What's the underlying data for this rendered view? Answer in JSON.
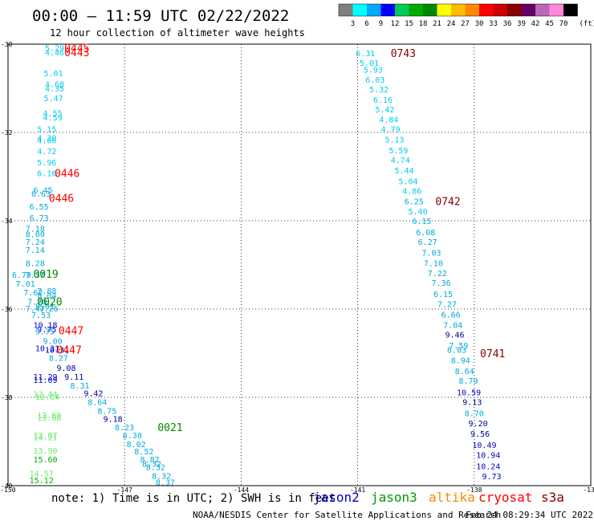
{
  "header": {
    "title": "00:00 – 11:59 UTC 02/22/2022",
    "subtitle": "12 hour collection of altimeter wave heights"
  },
  "color_scale": {
    "labels": [
      "3",
      "6",
      "9",
      "12",
      "15",
      "18",
      "21",
      "24",
      "27",
      "30",
      "33",
      "36",
      "39",
      "42",
      "45",
      "70"
    ],
    "unit": "(ft)",
    "colors": [
      "#808080",
      "#00ffff",
      "#00aaff",
      "#0000ff",
      "#00cc55",
      "#00aa00",
      "#008800",
      "#ffff00",
      "#ffbb00",
      "#ff8800",
      "#ff0000",
      "#cc0000",
      "#880000",
      "#660066",
      "#bb66bb",
      "#ff88dd",
      "#000000"
    ]
  },
  "axes": {
    "lon_ticks": [
      "-150",
      "-147",
      "-144",
      "-141",
      "-138",
      "-135"
    ],
    "lat_ticks": [
      "-30",
      "-32",
      "-34",
      "-36",
      "-38",
      "-40"
    ],
    "lon_range": [
      -150,
      -135
    ],
    "lat_range": [
      -40,
      -30
    ]
  },
  "wave_readings": [
    {
      "lon": -149.05,
      "lat": -30.08,
      "v": "5.29",
      "c": "#00ccee"
    },
    {
      "lon": -149.05,
      "lat": -30.18,
      "v": "4.46",
      "c": "#00ccee"
    },
    {
      "lon": -149.08,
      "lat": -30.65,
      "v": "5.01",
      "c": "#00ccee"
    },
    {
      "lon": -149.05,
      "lat": -30.9,
      "v": "4.68",
      "c": "#00ccee"
    },
    {
      "lon": -149.05,
      "lat": -31.0,
      "v": "4.35",
      "c": "#00ccee"
    },
    {
      "lon": -149.08,
      "lat": -31.22,
      "v": "5.47",
      "c": "#00ccee"
    },
    {
      "lon": -149.1,
      "lat": -31.55,
      "v": "4.55",
      "c": "#00ccee"
    },
    {
      "lon": -149.1,
      "lat": -31.65,
      "v": "4.59",
      "c": "#00ccee"
    },
    {
      "lon": -149.25,
      "lat": -31.92,
      "v": "5.15",
      "c": "#00ccee"
    },
    {
      "lon": -149.25,
      "lat": -32.12,
      "v": "4.30",
      "c": "#00ccee"
    },
    {
      "lon": -149.25,
      "lat": -32.17,
      "v": "4.66",
      "c": "#00ccee"
    },
    {
      "lon": -149.25,
      "lat": -32.42,
      "v": "4.72",
      "c": "#00ccee"
    },
    {
      "lon": -149.25,
      "lat": -32.67,
      "v": "5.96",
      "c": "#00ccee"
    },
    {
      "lon": -149.25,
      "lat": -32.92,
      "v": "6.16",
      "c": "#00ccee"
    },
    {
      "lon": -149.35,
      "lat": -33.3,
      "v": "6.45",
      "c": "#00aadd"
    },
    {
      "lon": -149.4,
      "lat": -33.38,
      "v": "6.63",
      "c": "#00aadd"
    },
    {
      "lon": -149.45,
      "lat": -33.67,
      "v": "6.55",
      "c": "#00aadd"
    },
    {
      "lon": -149.45,
      "lat": -33.93,
      "v": "6.73",
      "c": "#00aadd"
    },
    {
      "lon": -149.55,
      "lat": -34.17,
      "v": "7.18",
      "c": "#00aadd"
    },
    {
      "lon": -149.55,
      "lat": -34.3,
      "v": "8.00",
      "c": "#00aadd"
    },
    {
      "lon": -149.55,
      "lat": -34.47,
      "v": "7.24",
      "c": "#00aadd"
    },
    {
      "lon": -149.55,
      "lat": -34.65,
      "v": "7.14",
      "c": "#00aadd"
    },
    {
      "lon": -149.55,
      "lat": -34.95,
      "v": "8.28",
      "c": "#00aadd"
    },
    {
      "lon": -149.9,
      "lat": -35.22,
      "v": "6.79",
      "c": "#00aadd"
    },
    {
      "lon": -149.55,
      "lat": -35.22,
      "v": "7.37",
      "c": "#00aadd"
    },
    {
      "lon": -149.8,
      "lat": -35.42,
      "v": "7.01",
      "c": "#00aadd"
    },
    {
      "lon": -149.6,
      "lat": -35.62,
      "v": "7.62",
      "c": "#00aadd"
    },
    {
      "lon": -149.25,
      "lat": -35.58,
      "v": "7.88",
      "c": "#00aadd"
    },
    {
      "lon": -149.25,
      "lat": -35.68,
      "v": "8.04",
      "c": "#00aadd"
    },
    {
      "lon": -149.5,
      "lat": -35.83,
      "v": "7.70",
      "c": "#00aadd"
    },
    {
      "lon": -149.55,
      "lat": -35.98,
      "v": "7.47",
      "c": "#00aadd"
    },
    {
      "lon": -149.3,
      "lat": -35.93,
      "v": "8.01",
      "c": "#00aadd"
    },
    {
      "lon": -149.2,
      "lat": -35.98,
      "v": "7.26",
      "c": "#00aadd"
    },
    {
      "lon": -149.4,
      "lat": -36.13,
      "v": "7.53",
      "c": "#00aadd"
    },
    {
      "lon": -149.35,
      "lat": -36.35,
      "v": "10.18",
      "c": "#0000cc"
    },
    {
      "lon": -149.25,
      "lat": -36.45,
      "v": "9.75",
      "c": "#0000cc"
    },
    {
      "lon": -149.3,
      "lat": -36.5,
      "v": "9.75",
      "c": "#00aadd"
    },
    {
      "lon": -149.1,
      "lat": -36.72,
      "v": "9.00",
      "c": "#00aadd"
    },
    {
      "lon": -149.3,
      "lat": -36.88,
      "v": "10.31",
      "c": "#0000cc"
    },
    {
      "lon": -149.05,
      "lat": -36.92,
      "v": "10.31",
      "c": "#0000cc"
    },
    {
      "lon": -148.95,
      "lat": -37.1,
      "v": "8.27",
      "c": "#00aadd"
    },
    {
      "lon": -148.75,
      "lat": -37.33,
      "v": "9.08",
      "c": "#000099"
    },
    {
      "lon": -149.35,
      "lat": -37.53,
      "v": "11.29",
      "c": "#0000cc"
    },
    {
      "lon": -149.35,
      "lat": -37.6,
      "v": "11.09",
      "c": "#0000cc"
    },
    {
      "lon": -148.55,
      "lat": -37.53,
      "v": "9.11",
      "c": "#000099"
    },
    {
      "lon": -148.4,
      "lat": -37.73,
      "v": "8.31",
      "c": "#00aadd"
    },
    {
      "lon": -149.35,
      "lat": -37.92,
      "v": "12.44",
      "c": "#66ee66"
    },
    {
      "lon": -149.3,
      "lat": -37.98,
      "v": "12.64",
      "c": "#66ee66"
    },
    {
      "lon": -148.05,
      "lat": -37.9,
      "v": "9.42",
      "c": "#000099"
    },
    {
      "lon": -147.95,
      "lat": -38.1,
      "v": "8.64",
      "c": "#00aadd"
    },
    {
      "lon": -147.7,
      "lat": -38.3,
      "v": "8.75",
      "c": "#00aadd"
    },
    {
      "lon": -149.25,
      "lat": -38.4,
      "v": "12.69",
      "c": "#66ee66"
    },
    {
      "lon": -149.25,
      "lat": -38.45,
      "v": "13.08",
      "c": "#66ee66"
    },
    {
      "lon": -147.55,
      "lat": -38.48,
      "v": "9.18",
      "c": "#000099"
    },
    {
      "lon": -147.25,
      "lat": -38.67,
      "v": "8.23",
      "c": "#00aadd"
    },
    {
      "lon": -149.35,
      "lat": -38.85,
      "v": "13.87",
      "c": "#66ee66"
    },
    {
      "lon": -149.35,
      "lat": -38.9,
      "v": "14.21",
      "c": "#66ee66"
    },
    {
      "lon": -147.05,
      "lat": -38.85,
      "v": "8.30",
      "c": "#00aadd"
    },
    {
      "lon": -146.95,
      "lat": -39.05,
      "v": "8.02",
      "c": "#00aadd"
    },
    {
      "lon": -149.35,
      "lat": -39.2,
      "v": "13.90",
      "c": "#66ee66"
    },
    {
      "lon": -146.75,
      "lat": -39.22,
      "v": "8.52",
      "c": "#00aadd"
    },
    {
      "lon": -149.35,
      "lat": -39.4,
      "v": "15.60",
      "c": "#00aa00"
    },
    {
      "lon": -146.6,
      "lat": -39.4,
      "v": "8.82",
      "c": "#00aadd"
    },
    {
      "lon": -146.55,
      "lat": -39.5,
      "v": "8.32",
      "c": "#00aadd"
    },
    {
      "lon": -146.45,
      "lat": -39.57,
      "v": "8.32",
      "c": "#00aadd"
    },
    {
      "lon": -149.45,
      "lat": -39.72,
      "v": "14.57",
      "c": "#66ee66"
    },
    {
      "lon": -146.3,
      "lat": -39.77,
      "v": "8.32",
      "c": "#00aadd"
    },
    {
      "lon": -149.45,
      "lat": -39.87,
      "v": "15.12",
      "c": "#00aa00"
    },
    {
      "lon": -146.2,
      "lat": -39.92,
      "v": "8.37",
      "c": "#00aadd"
    },
    {
      "lon": -141.05,
      "lat": -30.2,
      "v": "6.31",
      "c": "#00ccee"
    },
    {
      "lon": -140.95,
      "lat": -30.42,
      "v": "5.01",
      "c": "#00ccee"
    },
    {
      "lon": -140.85,
      "lat": -30.57,
      "v": "5.93",
      "c": "#00ccee"
    },
    {
      "lon": -140.8,
      "lat": -30.8,
      "v": "6.03",
      "c": "#00ccee"
    },
    {
      "lon": -140.7,
      "lat": -31.02,
      "v": "5.32",
      "c": "#00ccee"
    },
    {
      "lon": -140.6,
      "lat": -31.25,
      "v": "6.16",
      "c": "#00ccee"
    },
    {
      "lon": -140.55,
      "lat": -31.47,
      "v": "5.42",
      "c": "#00ccee"
    },
    {
      "lon": -140.45,
      "lat": -31.7,
      "v": "4.84",
      "c": "#00ccee"
    },
    {
      "lon": -140.4,
      "lat": -31.92,
      "v": "4.79",
      "c": "#00ccee"
    },
    {
      "lon": -140.3,
      "lat": -32.15,
      "v": "5.13",
      "c": "#00ccee"
    },
    {
      "lon": -140.2,
      "lat": -32.4,
      "v": "5.59",
      "c": "#00ccee"
    },
    {
      "lon": -140.15,
      "lat": -32.62,
      "v": "4.74",
      "c": "#00ccee"
    },
    {
      "lon": -140.05,
      "lat": -32.85,
      "v": "5.44",
      "c": "#00ccee"
    },
    {
      "lon": -139.95,
      "lat": -33.1,
      "v": "5.04",
      "c": "#00ccee"
    },
    {
      "lon": -139.85,
      "lat": -33.32,
      "v": "4.86",
      "c": "#00ccee"
    },
    {
      "lon": -139.8,
      "lat": -33.55,
      "v": "6.25",
      "c": "#00aadd"
    },
    {
      "lon": -139.7,
      "lat": -33.78,
      "v": "5.40",
      "c": "#00ccee"
    },
    {
      "lon": -139.6,
      "lat": -34.0,
      "v": "6.15",
      "c": "#00aadd"
    },
    {
      "lon": -139.5,
      "lat": -34.25,
      "v": "6.08",
      "c": "#00aadd"
    },
    {
      "lon": -139.45,
      "lat": -34.47,
      "v": "6.27",
      "c": "#00aadd"
    },
    {
      "lon": -139.35,
      "lat": -34.72,
      "v": "7.03",
      "c": "#00aadd"
    },
    {
      "lon": -139.3,
      "lat": -34.95,
      "v": "7.10",
      "c": "#00aadd"
    },
    {
      "lon": -139.2,
      "lat": -35.18,
      "v": "7.22",
      "c": "#00aadd"
    },
    {
      "lon": -139.1,
      "lat": -35.4,
      "v": "7.36",
      "c": "#00aadd"
    },
    {
      "lon": -139.05,
      "lat": -35.65,
      "v": "6.15",
      "c": "#00aadd"
    },
    {
      "lon": -138.95,
      "lat": -35.88,
      "v": "7.27",
      "c": "#00aadd"
    },
    {
      "lon": -138.85,
      "lat": -36.12,
      "v": "6.66",
      "c": "#00aadd"
    },
    {
      "lon": -138.8,
      "lat": -36.35,
      "v": "7.04",
      "c": "#00aadd"
    },
    {
      "lon": -138.75,
      "lat": -36.57,
      "v": "9.46",
      "c": "#000099"
    },
    {
      "lon": -138.65,
      "lat": -36.82,
      "v": "7.59",
      "c": "#00aadd"
    },
    {
      "lon": -138.7,
      "lat": -36.92,
      "v": "8.03",
      "c": "#00aadd"
    },
    {
      "lon": -138.6,
      "lat": -37.15,
      "v": "8.94",
      "c": "#00aadd"
    },
    {
      "lon": -138.5,
      "lat": -37.4,
      "v": "8.64",
      "c": "#00aadd"
    },
    {
      "lon": -138.4,
      "lat": -37.62,
      "v": "8.79",
      "c": "#00aadd"
    },
    {
      "lon": -138.45,
      "lat": -37.88,
      "v": "10.59",
      "c": "#0000cc"
    },
    {
      "lon": -138.3,
      "lat": -38.1,
      "v": "9.13",
      "c": "#000099"
    },
    {
      "lon": -138.25,
      "lat": -38.35,
      "v": "8.70",
      "c": "#00aadd"
    },
    {
      "lon": -138.15,
      "lat": -38.58,
      "v": "9.20",
      "c": "#000099"
    },
    {
      "lon": -138.1,
      "lat": -38.82,
      "v": "9.56",
      "c": "#000099"
    },
    {
      "lon": -138.05,
      "lat": -39.07,
      "v": "10.49",
      "c": "#0000cc"
    },
    {
      "lon": -137.95,
      "lat": -39.3,
      "v": "10.94",
      "c": "#0000cc"
    },
    {
      "lon": -137.95,
      "lat": -39.55,
      "v": "10.24",
      "c": "#0000cc"
    },
    {
      "lon": -137.8,
      "lat": -39.78,
      "v": "9.73",
      "c": "#0000cc"
    }
  ],
  "time_labels": [
    {
      "lon": -148.55,
      "lat": -30.08,
      "t": "0445",
      "c": "#ff0000"
    },
    {
      "lon": -148.55,
      "lat": -30.18,
      "t": "0443",
      "c": "#ff0000"
    },
    {
      "lon": -140.15,
      "lat": -30.2,
      "t": "0743",
      "c": "#880000"
    },
    {
      "lon": -148.8,
      "lat": -32.92,
      "t": "0446",
      "c": "#ff0000"
    },
    {
      "lon": -148.95,
      "lat": -33.48,
      "t": "0446",
      "c": "#ff0000"
    },
    {
      "lon": -139.0,
      "lat": -33.55,
      "t": "0742",
      "c": "#880000"
    },
    {
      "lon": -149.35,
      "lat": -35.2,
      "t": "0019",
      "c": "#008800"
    },
    {
      "lon": -149.25,
      "lat": -35.83,
      "t": "0020",
      "c": "#008800"
    },
    {
      "lon": -148.7,
      "lat": -36.48,
      "t": "0447",
      "c": "#ff0000"
    },
    {
      "lon": -148.75,
      "lat": -36.92,
      "t": "0447",
      "c": "#ff0000"
    },
    {
      "lon": -137.85,
      "lat": -37.0,
      "t": "0741",
      "c": "#880000"
    },
    {
      "lon": -146.15,
      "lat": -38.67,
      "t": "0021",
      "c": "#008800"
    }
  ],
  "note": "note: 1) Time is in UTC; 2) SWH is in feet",
  "satellites": [
    {
      "name": "jason2",
      "c": "#0000cc"
    },
    {
      "name": "jason3",
      "c": "#009900"
    },
    {
      "name": "altika",
      "c": "#ff8800"
    },
    {
      "name": "cryosat",
      "c": "#ff0000"
    },
    {
      "name": "s3a",
      "c": "#880000"
    }
  ],
  "footer": {
    "credit": "NOAA/NESDIS Center for Satellite Applications and Research",
    "timestamp": "Feb 24 08:29:34 UTC 2022"
  }
}
